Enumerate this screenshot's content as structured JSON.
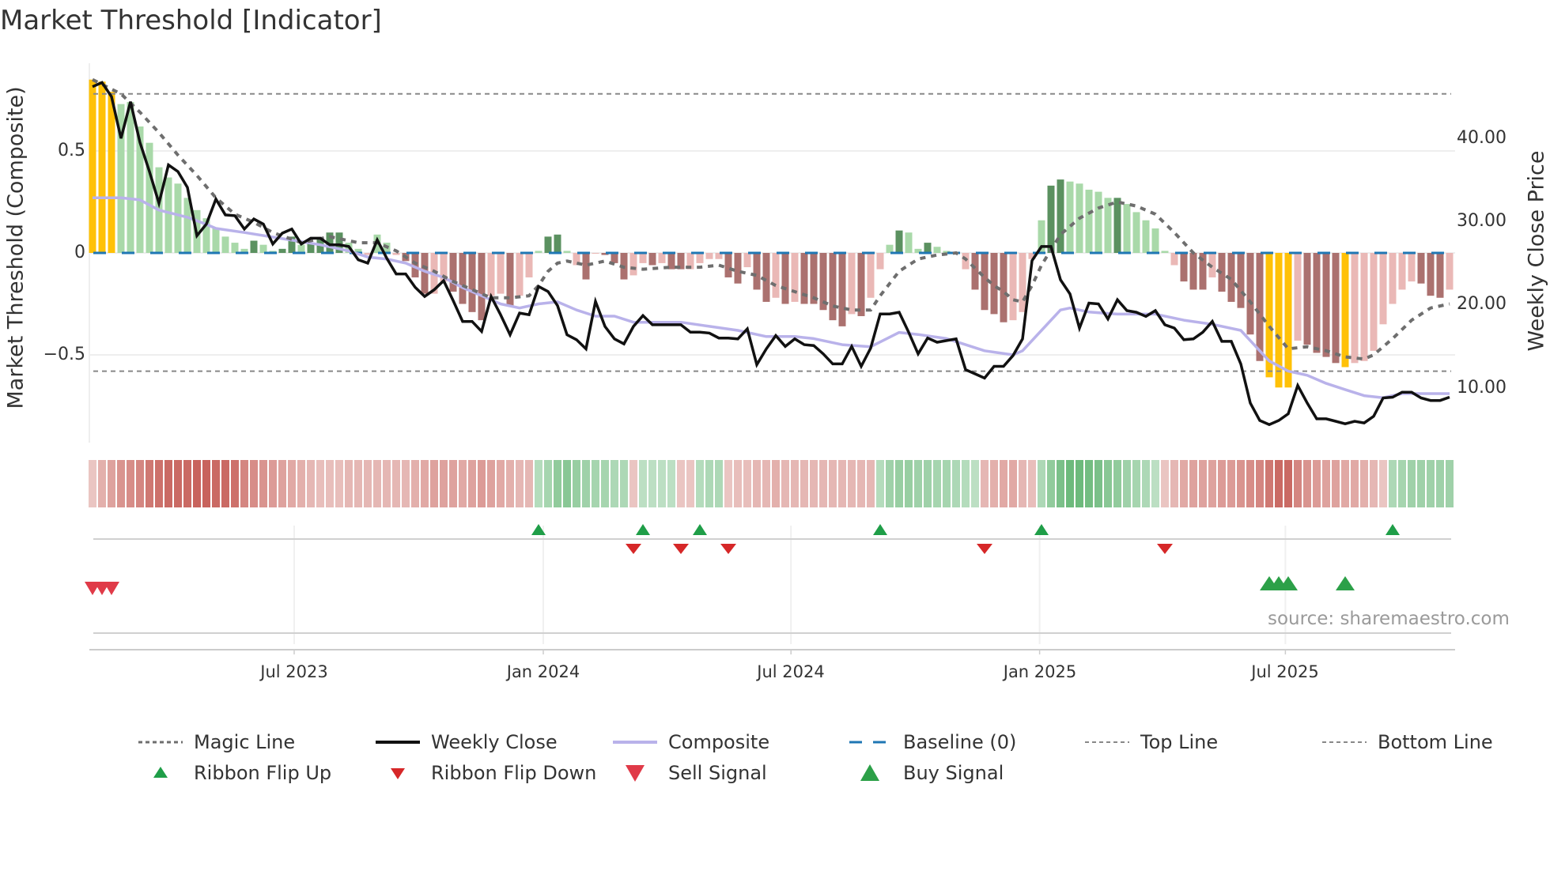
{
  "chart_data": {
    "type": "bar",
    "title": "Market Threshold [Indicator]",
    "ylabel_left": "Market Threshold (Composite)",
    "ylabel_right": "Weekly Close Price",
    "ylim_left": [
      -0.9,
      0.92
    ],
    "ylim_right": [
      3,
      50
    ],
    "y_ticks_left": [
      {
        "value": 0.5,
        "label": "0.5"
      },
      {
        "value": 0,
        "label": "0"
      },
      {
        "value": -0.5,
        "label": "−0.5"
      }
    ],
    "y_ticks_right": [
      {
        "value": 40,
        "label": "40.00"
      },
      {
        "value": 30,
        "label": "30.00"
      },
      {
        "value": 20,
        "label": "20.00"
      },
      {
        "value": 10,
        "label": "10.00"
      }
    ],
    "x_ticks": [
      {
        "label": "Jul 2023",
        "week": 21.25
      },
      {
        "label": "Jan 2024",
        "week": 47.5
      },
      {
        "label": "Jul 2024",
        "week": 73.6
      },
      {
        "label": "Jan 2025",
        "week": 99.8
      },
      {
        "label": "Jul 2025",
        "week": 125.7
      }
    ],
    "weeks": 144,
    "top_line": 0.78,
    "bottom_line": -0.58,
    "baseline": 0,
    "weekly_close": [
      46.2,
      46.7,
      45.0,
      40,
      44.4,
      39.5,
      36,
      32.2,
      36.8,
      36,
      34.1,
      28.3,
      29.7,
      32.7,
      30.8,
      30.7,
      29.1,
      30.3,
      29.7,
      27.3,
      28.6,
      29.1,
      27.3,
      28,
      28,
      27.2,
      27.2,
      27,
      25.4,
      25,
      27.8,
      25.6,
      23.7,
      23.7,
      22.1,
      21,
      21.8,
      22.9,
      20.5,
      18,
      18,
      16.8,
      21,
      18.8,
      16.4,
      19,
      18.8,
      22.2,
      21.6,
      19.9,
      16.4,
      15.8,
      14.7,
      20.4,
      17.4,
      15.9,
      15.3,
      17.4,
      18.7,
      17.6,
      17.6,
      17.6,
      17.6,
      16.7,
      16.7,
      16.6,
      16,
      16,
      15.9,
      17.1,
      12.8,
      14.7,
      16.3,
      15,
      15.9,
      15.2,
      15.1,
      14.1,
      12.9,
      12.9,
      15,
      12.6,
      14.8,
      18.9,
      18.9,
      19.1,
      16.7,
      14.1,
      16,
      15.5,
      15.7,
      15.9,
      12.2,
      11.7,
      11.2,
      12.6,
      12.6,
      13.9,
      15.9,
      25.3,
      27,
      27,
      23,
      21.3,
      17.2,
      20.2,
      20.1,
      18.3,
      20.6,
      19.3,
      19.1,
      18.6,
      19.3,
      17.6,
      17.2,
      15.8,
      15.9,
      16.7,
      18,
      15.6,
      15.6,
      12.9,
      8.2,
      6.1,
      5.6,
      6.1,
      6.9,
      10.3,
      8.2,
      6.3,
      6.3,
      6.0,
      5.7,
      6.0,
      5.8,
      6.6,
      8.8,
      8.9,
      9.5,
      9.5,
      8.8,
      8.5,
      8.5,
      8.9
    ],
    "composite": [
      [
        0,
        0.27
      ],
      [
        3,
        0.27
      ],
      [
        5,
        0.26
      ],
      [
        7,
        0.21
      ],
      [
        10,
        0.175
      ],
      [
        12,
        0.14
      ],
      [
        13,
        0.12
      ],
      [
        16,
        0.1
      ],
      [
        20,
        0.07
      ],
      [
        24,
        0.04
      ],
      [
        27,
        0.01
      ],
      [
        29,
        -0.02
      ],
      [
        31,
        -0.03
      ],
      [
        33,
        -0.05
      ],
      [
        35,
        -0.09
      ],
      [
        37,
        -0.12
      ],
      [
        39,
        -0.17
      ],
      [
        41,
        -0.21
      ],
      [
        43,
        -0.25
      ],
      [
        45,
        -0.27
      ],
      [
        47,
        -0.25
      ],
      [
        49,
        -0.24
      ],
      [
        51,
        -0.28
      ],
      [
        53,
        -0.31
      ],
      [
        55,
        -0.31
      ],
      [
        57,
        -0.34
      ],
      [
        62,
        -0.34
      ],
      [
        65,
        -0.36
      ],
      [
        68,
        -0.38
      ],
      [
        71,
        -0.41
      ],
      [
        74,
        -0.41
      ],
      [
        76,
        -0.42
      ],
      [
        79,
        -0.45
      ],
      [
        82,
        -0.46
      ],
      [
        85,
        -0.39
      ],
      [
        87,
        -0.4
      ],
      [
        90,
        -0.42
      ],
      [
        92,
        -0.45
      ],
      [
        94,
        -0.48
      ],
      [
        97,
        -0.5
      ],
      [
        98,
        -0.48
      ],
      [
        100,
        -0.38
      ],
      [
        102,
        -0.28
      ],
      [
        103,
        -0.27
      ],
      [
        105,
        -0.29
      ],
      [
        108,
        -0.3
      ],
      [
        112,
        -0.3
      ],
      [
        115,
        -0.33
      ],
      [
        118,
        -0.35
      ],
      [
        121,
        -0.38
      ],
      [
        122,
        -0.43
      ],
      [
        124,
        -0.53
      ],
      [
        126,
        -0.58
      ],
      [
        128,
        -0.6
      ],
      [
        130,
        -0.64
      ],
      [
        132,
        -0.67
      ],
      [
        134,
        -0.7
      ],
      [
        136,
        -0.71
      ],
      [
        138,
        -0.69
      ],
      [
        143,
        -0.69
      ]
    ],
    "magic_line": [
      [
        0,
        0.85
      ],
      [
        3,
        0.78
      ],
      [
        5,
        0.69
      ],
      [
        7,
        0.59
      ],
      [
        9,
        0.48
      ],
      [
        11,
        0.38
      ],
      [
        13,
        0.27
      ],
      [
        15,
        0.19
      ],
      [
        17,
        0.15
      ],
      [
        19,
        0.1
      ],
      [
        22,
        0.05
      ],
      [
        25,
        0.08
      ],
      [
        28,
        0.05
      ],
      [
        30,
        0.05
      ],
      [
        32,
        0.01
      ],
      [
        34,
        -0.05
      ],
      [
        36,
        -0.09
      ],
      [
        38,
        -0.14
      ],
      [
        40,
        -0.18
      ],
      [
        42,
        -0.22
      ],
      [
        44,
        -0.22
      ],
      [
        46,
        -0.21
      ],
      [
        47,
        -0.16
      ],
      [
        48,
        -0.09
      ],
      [
        49,
        -0.05
      ],
      [
        50,
        -0.04
      ],
      [
        52,
        -0.06
      ],
      [
        54,
        -0.04
      ],
      [
        56,
        -0.07
      ],
      [
        58,
        -0.08
      ],
      [
        61,
        -0.07
      ],
      [
        64,
        -0.07
      ],
      [
        66,
        -0.06
      ],
      [
        68,
        -0.09
      ],
      [
        70,
        -0.11
      ],
      [
        72,
        -0.16
      ],
      [
        74,
        -0.19
      ],
      [
        76,
        -0.22
      ],
      [
        78,
        -0.26
      ],
      [
        80,
        -0.28
      ],
      [
        82,
        -0.28
      ],
      [
        83,
        -0.21
      ],
      [
        85,
        -0.09
      ],
      [
        87,
        -0.03
      ],
      [
        89,
        -0.01
      ],
      [
        91,
        0
      ],
      [
        92,
        -0.03
      ],
      [
        94,
        -0.12
      ],
      [
        95,
        -0.16
      ],
      [
        96,
        -0.19
      ],
      [
        97,
        -0.23
      ],
      [
        98,
        -0.24
      ],
      [
        99,
        -0.16
      ],
      [
        100,
        -0.06
      ],
      [
        102,
        0.09
      ],
      [
        104,
        0.17
      ],
      [
        106,
        0.22
      ],
      [
        108,
        0.25
      ],
      [
        110,
        0.23
      ],
      [
        112,
        0.19
      ],
      [
        114,
        0.1
      ],
      [
        116,
        0
      ],
      [
        118,
        -0.07
      ],
      [
        120,
        -0.13
      ],
      [
        122,
        -0.24
      ],
      [
        124,
        -0.36
      ],
      [
        126,
        -0.47
      ],
      [
        128,
        -0.46
      ],
      [
        130,
        -0.48
      ],
      [
        132,
        -0.51
      ],
      [
        134,
        -0.52
      ],
      [
        135,
        -0.5
      ],
      [
        137,
        -0.42
      ],
      [
        139,
        -0.33
      ],
      [
        141,
        -0.27
      ],
      [
        143,
        -0.25
      ]
    ],
    "histogram": [
      0.85,
      0.84,
      0.79,
      0.73,
      0.74,
      0.62,
      0.54,
      0.42,
      0.37,
      0.34,
      0.27,
      0.21,
      0.17,
      0.12,
      0.08,
      0.05,
      0.02,
      0.06,
      0.04,
      0.01,
      0.02,
      0.08,
      0.04,
      0.05,
      0.07,
      0.1,
      0.1,
      0.05,
      0.02,
      -0.01,
      0.09,
      0.05,
      -0.01,
      -0.04,
      -0.12,
      -0.2,
      -0.2,
      -0.14,
      -0.19,
      -0.25,
      -0.29,
      -0.33,
      -0.21,
      -0.2,
      -0.26,
      -0.21,
      -0.12,
      0.01,
      0.08,
      0.09,
      0.01,
      -0.06,
      -0.13,
      0,
      -0.01,
      -0.05,
      -0.13,
      -0.11,
      -0.05,
      -0.06,
      -0.05,
      -0.08,
      -0.08,
      -0.08,
      -0.05,
      -0.03,
      -0.03,
      -0.12,
      -0.15,
      -0.07,
      -0.18,
      -0.24,
      -0.22,
      -0.25,
      -0.24,
      -0.25,
      -0.25,
      -0.28,
      -0.33,
      -0.36,
      -0.3,
      -0.31,
      -0.22,
      -0.08,
      0.04,
      0.11,
      0.1,
      0.02,
      0.05,
      0.03,
      0.01,
      0.0,
      -0.08,
      -0.18,
      -0.28,
      -0.3,
      -0.34,
      -0.33,
      -0.29,
      -0.03,
      0.16,
      0.33,
      0.36,
      0.35,
      0.34,
      0.31,
      0.3,
      0.27,
      0.27,
      0.24,
      0.2,
      0.16,
      0.12,
      0.01,
      -0.06,
      -0.14,
      -0.18,
      -0.18,
      -0.12,
      -0.19,
      -0.24,
      -0.27,
      -0.4,
      -0.53,
      -0.61,
      -0.66,
      -0.66,
      -0.43,
      -0.45,
      -0.49,
      -0.51,
      -0.54,
      -0.56,
      -0.54,
      -0.53,
      -0.48,
      -0.35,
      -0.25,
      -0.18,
      -0.14,
      -0.15,
      -0.21,
      -0.22,
      -0.18
    ],
    "histogram_class": "yyyggggggg gggggggGgg GGgGGGGggr ggrRRRrrRR RRrrRrrgGG grRrRRRrrR rRRrrrrRRr RRrRrRRRRR rRrrgGggGg ggrRRRRrrr gGGgggggGg ggggrRRRrR RRRRyyyrRR RRyrrrrrrr RRRr",
    "ribbon": [
      -0.2,
      -0.35,
      -0.45,
      -0.55,
      -0.6,
      -0.65,
      -0.75,
      -0.8,
      -0.85,
      -0.85,
      -0.85,
      -0.9,
      -0.9,
      -0.85,
      -0.85,
      -0.8,
      -0.65,
      -0.6,
      -0.55,
      -0.5,
      -0.45,
      -0.4,
      -0.35,
      -0.3,
      -0.25,
      -0.25,
      -0.25,
      -0.3,
      -0.3,
      -0.3,
      -0.3,
      -0.3,
      -0.3,
      -0.3,
      -0.35,
      -0.4,
      -0.45,
      -0.45,
      -0.45,
      -0.4,
      -0.45,
      -0.5,
      -0.45,
      -0.4,
      -0.35,
      -0.3,
      -0.3,
      0.3,
      0.4,
      0.55,
      0.6,
      0.5,
      0.45,
      0.4,
      0.4,
      0.35,
      0.35,
      -0.2,
      0.25,
      0.25,
      0.25,
      0.25,
      -0.2,
      -0.2,
      0.3,
      0.35,
      0.35,
      -0.2,
      -0.25,
      -0.25,
      -0.3,
      -0.3,
      -0.35,
      -0.3,
      -0.3,
      -0.3,
      -0.3,
      -0.3,
      -0.3,
      -0.3,
      -0.3,
      -0.3,
      -0.3,
      0.3,
      0.45,
      0.5,
      0.5,
      0.45,
      0.45,
      0.4,
      0.4,
      0.35,
      0.3,
      0.25,
      -0.3,
      -0.35,
      -0.4,
      -0.4,
      -0.3,
      -0.25,
      0.35,
      0.55,
      0.7,
      0.8,
      0.8,
      0.75,
      0.7,
      0.6,
      0.55,
      0.45,
      0.4,
      0.35,
      0.25,
      -0.2,
      -0.3,
      -0.4,
      -0.45,
      -0.45,
      -0.45,
      -0.5,
      -0.5,
      -0.55,
      -0.6,
      -0.65,
      -0.75,
      -0.85,
      -0.85,
      -0.65,
      -0.55,
      -0.5,
      -0.45,
      -0.45,
      -0.4,
      -0.4,
      -0.35,
      -0.3,
      -0.2,
      0.35,
      0.4,
      0.45,
      0.45,
      0.45,
      0.45,
      0.45
    ],
    "ribbon_flip_up": [
      47,
      58,
      64,
      83,
      100,
      137
    ],
    "ribbon_flip_down": [
      57,
      62,
      67,
      94,
      113
    ],
    "sell_signal": [
      0,
      1,
      2
    ],
    "buy_signal": [
      124,
      125,
      126,
      132
    ],
    "colors": {
      "yellow": "#ffc107",
      "light_green": "#a9d9a9",
      "dark_green": "#5b9160",
      "light_red": "#eab8b6",
      "dark_red": "#ab716f",
      "close": "#111111",
      "composite": "#b9b2ea",
      "magic": "#6e6e6e",
      "baseline": "#1f77b4",
      "flip_up": "#1f9e48",
      "flip_down": "#d62728",
      "sell": "#e03a48",
      "buy": "#2ca048"
    },
    "legend": {
      "magic": "Magic Line",
      "close": "Weekly Close",
      "composite": "Composite",
      "baseline": "Baseline (0)",
      "top": "Top Line",
      "bottom": "Bottom Line",
      "flip_up": "Ribbon Flip Up",
      "flip_down": "Ribbon Flip Down",
      "sell": "Sell Signal",
      "buy": "Buy Signal"
    },
    "source": "source: sharemaestro.com"
  }
}
